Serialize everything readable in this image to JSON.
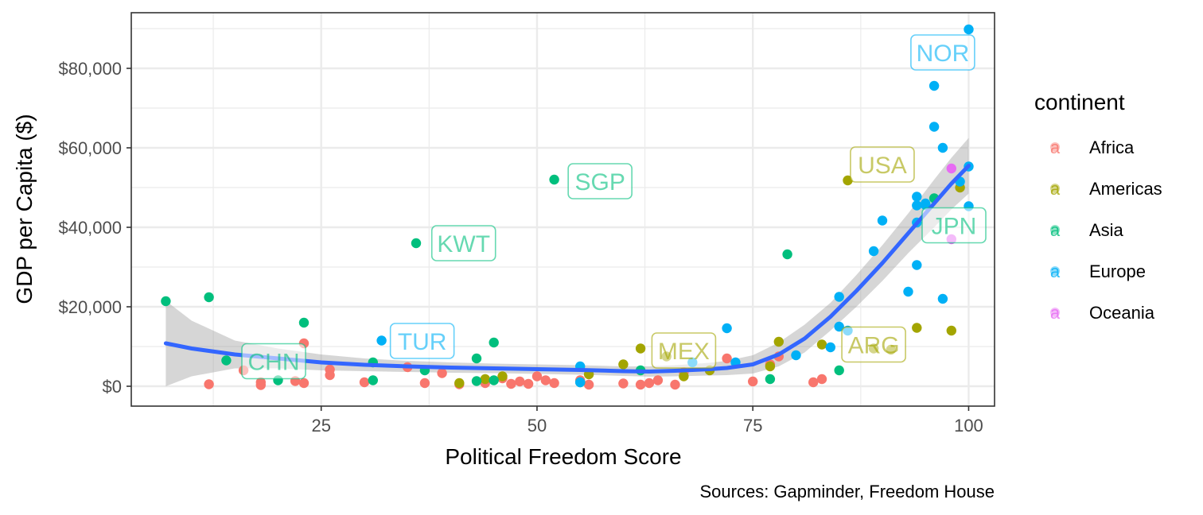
{
  "chart_data": {
    "type": "scatter",
    "xlabel": "Political Freedom Score",
    "ylabel": "GDP per Capita ($)",
    "caption": "Sources: Gapminder, Freedom House",
    "xlim": [
      3,
      103
    ],
    "ylim": [
      -5000,
      94000
    ],
    "x_ticks": [
      25,
      50,
      75,
      100
    ],
    "x_tick_labels": [
      "25",
      "50",
      "75",
      "100"
    ],
    "y_ticks": [
      0,
      20000,
      40000,
      60000,
      80000
    ],
    "y_tick_labels": [
      "$0",
      "$20,000",
      "$40,000",
      "$60,000",
      "$80,000"
    ],
    "grid": true,
    "legend": {
      "title": "continent",
      "position": "right",
      "glyph": "a",
      "entries": [
        {
          "name": "Africa",
          "color": "#F8766D"
        },
        {
          "name": "Americas",
          "color": "#A3A500"
        },
        {
          "name": "Asia",
          "color": "#00BF7D"
        },
        {
          "name": "Europe",
          "color": "#00B0F6"
        },
        {
          "name": "Oceania",
          "color": "#E76BF3"
        }
      ]
    },
    "smooth": {
      "color": "#3366FF",
      "ribbon_color": "#999999",
      "x": [
        7,
        10,
        15,
        20,
        25,
        30,
        35,
        40,
        45,
        50,
        55,
        60,
        63,
        66,
        70,
        72,
        75,
        78,
        81,
        84,
        87,
        90,
        93,
        96,
        98,
        100
      ],
      "y": [
        10800,
        9500,
        8000,
        7000,
        6000,
        5400,
        5000,
        4700,
        4500,
        4300,
        4100,
        3800,
        3700,
        3900,
        4300,
        4600,
        5500,
        8000,
        12000,
        17500,
        24000,
        31000,
        38500,
        46000,
        51000,
        55500
      ],
      "lower": [
        0,
        2500,
        4500,
        4500,
        4000,
        3800,
        3600,
        3400,
        3300,
        3100,
        2900,
        2600,
        2400,
        2500,
        2700,
        2800,
        3200,
        5000,
        8500,
        14000,
        20000,
        26500,
        33500,
        40000,
        44500,
        48500
      ],
      "upper": [
        21500,
        16500,
        11500,
        9500,
        8000,
        7000,
        6400,
        6000,
        5700,
        5500,
        5300,
        5000,
        5000,
        5300,
        5900,
        6400,
        7800,
        11000,
        15500,
        21000,
        28000,
        35500,
        43500,
        52000,
        57500,
        62500
      ]
    },
    "series": [
      {
        "name": "Africa",
        "x": [
          12,
          16,
          18,
          18,
          22,
          23,
          23,
          26,
          26,
          30,
          35,
          37,
          39,
          41,
          44,
          46,
          47,
          48,
          49,
          50,
          51,
          52,
          55,
          56,
          60,
          62,
          63,
          64,
          66,
          67,
          72,
          75,
          77,
          78,
          82,
          83
        ],
        "y": [
          500,
          4000,
          1000,
          300,
          1300,
          800,
          10800,
          4200,
          2800,
          1000,
          4800,
          800,
          3300,
          500,
          800,
          2000,
          600,
          1200,
          600,
          2500,
          1500,
          800,
          1500,
          400,
          700,
          400,
          800,
          1500,
          400,
          3500,
          7000,
          1200,
          5500,
          7500,
          1000,
          1800
        ]
      },
      {
        "name": "Americas",
        "x": [
          41,
          44,
          46,
          56,
          60,
          62,
          65,
          67,
          70,
          77,
          78,
          83,
          86,
          89,
          91,
          94,
          98,
          99
        ],
        "y": [
          800,
          1800,
          2500,
          3000,
          5500,
          9500,
          7500,
          2500,
          4000,
          5000,
          11200,
          10500,
          51800,
          9500,
          9200,
          14700,
          14000,
          50000
        ]
      },
      {
        "name": "Asia",
        "x": [
          7,
          12,
          14,
          20,
          23,
          31,
          31,
          37,
          36,
          43,
          43,
          45,
          45,
          52,
          55,
          62,
          77,
          79,
          85,
          96
        ],
        "y": [
          21400,
          22400,
          6500,
          1500,
          16000,
          6000,
          1500,
          4000,
          36000,
          7000,
          1300,
          11000,
          1500,
          52000,
          1000,
          4000,
          1800,
          33200,
          4000,
          47300
        ]
      },
      {
        "name": "Europe",
        "x": [
          32,
          55,
          55,
          68,
          72,
          73,
          80,
          84,
          85,
          85,
          86,
          89,
          90,
          93,
          94,
          94,
          94,
          94,
          95,
          95,
          96,
          96,
          97,
          97,
          99,
          100,
          100,
          100
        ],
        "y": [
          11500,
          5000,
          1000,
          6000,
          14600,
          6000,
          7800,
          9800,
          22500,
          15000,
          14000,
          34000,
          41700,
          23800,
          47700,
          45500,
          41200,
          30500,
          45600,
          46000,
          75600,
          65300,
          60000,
          22000,
          51500,
          89800,
          55300,
          45300
        ]
      },
      {
        "name": "Oceania",
        "x": [
          98,
          98
        ],
        "y": [
          54800,
          37000
        ]
      }
    ],
    "labels": [
      {
        "text": "NOR",
        "x": 97,
        "y": 84000,
        "continent": "Europe"
      },
      {
        "text": "USA",
        "x": 90,
        "y": 55800,
        "continent": "Americas"
      },
      {
        "text": "JPN",
        "x": 98.3,
        "y": 40500,
        "continent": "Asia"
      },
      {
        "text": "ARG",
        "x": 89,
        "y": 10500,
        "continent": "Americas"
      },
      {
        "text": "MEX",
        "x": 67,
        "y": 9000,
        "continent": "Americas"
      },
      {
        "text": "SGP",
        "x": 57.3,
        "y": 51600,
        "continent": "Asia"
      },
      {
        "text": "KWT",
        "x": 41.5,
        "y": 36000,
        "continent": "Asia"
      },
      {
        "text": "TUR",
        "x": 36.7,
        "y": 11400,
        "continent": "Europe"
      },
      {
        "text": "CHN",
        "x": 19.5,
        "y": 6300,
        "continent": "Asia"
      }
    ]
  }
}
